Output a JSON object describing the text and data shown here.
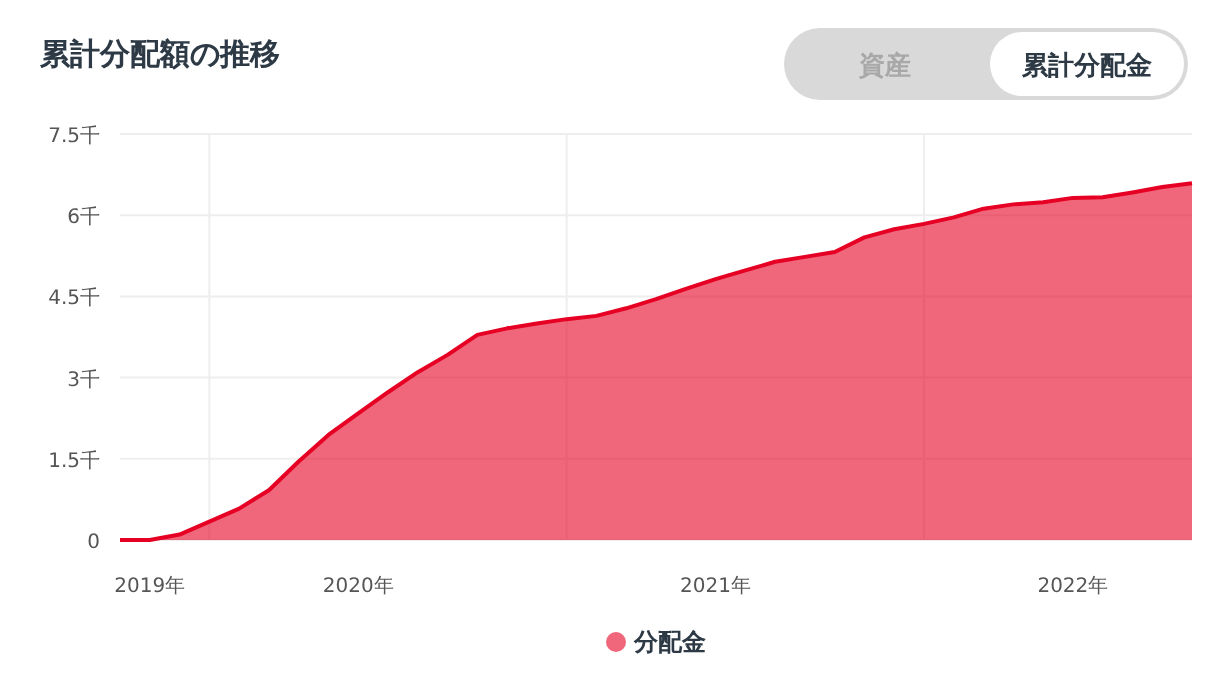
{
  "chart_data": {
    "type": "area",
    "title": "累計分配額の推移",
    "annotations": [
      "資産",
      "累計分配金"
    ],
    "x": [
      "2019-05",
      "2019-06",
      "2019-07",
      "2019-08",
      "2019-09",
      "2019-10",
      "2019-11",
      "2019-12",
      "2020-01",
      "2020-02",
      "2020-03",
      "2020-04",
      "2020-05",
      "2020-06",
      "2020-07",
      "2020-08",
      "2020-09",
      "2020-10",
      "2020-11",
      "2020-12",
      "2021-01",
      "2021-02",
      "2021-03",
      "2021-04",
      "2021-05",
      "2021-06",
      "2021-07",
      "2021-08",
      "2021-09",
      "2021-10",
      "2021-11",
      "2021-12",
      "2022-01",
      "2022-02",
      "2022-03",
      "2022-04",
      "2022-05"
    ],
    "series": [
      {
        "name": "分配金",
        "color": "#e60023",
        "values": [
          0,
          0,
          0.1,
          0.34,
          0.58,
          0.92,
          1.45,
          1.94,
          2.34,
          2.73,
          3.1,
          3.42,
          3.79,
          3.91,
          4.0,
          4.08,
          4.14,
          4.28,
          4.45,
          4.64,
          4.82,
          4.98,
          5.14,
          5.23,
          5.32,
          5.59,
          5.74,
          5.84,
          5.96,
          6.12,
          6.2,
          6.24,
          6.32,
          6.33,
          6.42,
          6.52,
          6.59
        ]
      }
    ],
    "xlim": [
      "2019-05",
      "2022-05"
    ],
    "xticks": [
      {
        "value": "2019-06",
        "label": "2019年"
      },
      {
        "value": "2019-08",
        "label": null
      },
      {
        "value": "2020-01",
        "label": "2020年"
      },
      {
        "value": "2020-08",
        "label": null
      },
      {
        "value": "2021-01",
        "label": "2021年"
      },
      {
        "value": "2021-08",
        "label": null
      },
      {
        "value": "2022-01",
        "label": "2022年"
      }
    ],
    "ylim": [
      0,
      7.5
    ],
    "yticks": [
      0,
      {
        "value": 1.5,
        "label": "1.5千"
      },
      {
        "value": 3,
        "label": "3千"
      },
      {
        "value": 4.5,
        "label": "4.5千"
      },
      {
        "value": 6,
        "label": "6千"
      },
      {
        "value": 7.5,
        "label": "7.5千"
      }
    ],
    "grid": true,
    "legend": "bottom"
  }
}
